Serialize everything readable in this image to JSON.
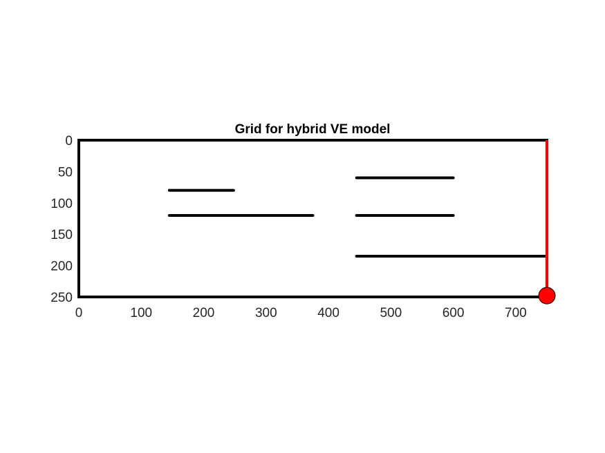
{
  "chart_data": {
    "type": "line",
    "title": "Grid for hybrid VE model",
    "xlabel": "",
    "ylabel": "",
    "xlim": [
      0,
      750
    ],
    "ylim": [
      0,
      250
    ],
    "y_reversed": true,
    "grid": false,
    "x_ticks": [
      0,
      100,
      200,
      300,
      400,
      500,
      600,
      700
    ],
    "y_ticks": [
      0,
      50,
      100,
      150,
      200,
      250
    ],
    "colors": {
      "boundary": "#000000",
      "segments": "#000000",
      "well": "#ff0000"
    },
    "boundary": [
      {
        "x": [
          0,
          750
        ],
        "y": [
          0,
          0
        ]
      },
      {
        "x": [
          0,
          750
        ],
        "y": [
          250,
          250
        ]
      },
      {
        "x": [
          0,
          0
        ],
        "y": [
          0,
          250
        ]
      }
    ],
    "segments": [
      {
        "x": [
          145,
          248
        ],
        "y": [
          80,
          80
        ]
      },
      {
        "x": [
          145,
          375
        ],
        "y": [
          120,
          120
        ]
      },
      {
        "x": [
          445,
          600
        ],
        "y": [
          60,
          60
        ]
      },
      {
        "x": [
          445,
          600
        ],
        "y": [
          120,
          120
        ]
      },
      {
        "x": [
          445,
          750
        ],
        "y": [
          185,
          185
        ]
      }
    ],
    "well_line": {
      "x": [
        750,
        750
      ],
      "y": [
        0,
        250
      ]
    },
    "well_marker": {
      "x": 750,
      "y": 248
    }
  }
}
